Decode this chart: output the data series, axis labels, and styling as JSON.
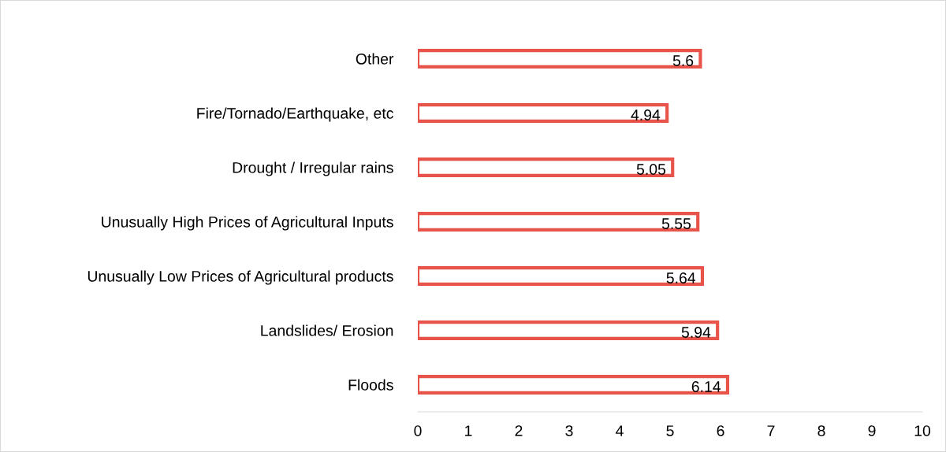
{
  "chart_data": {
    "type": "bar",
    "orientation": "horizontal",
    "categories": [
      "Other",
      "Fire/Tornado/Earthquake, etc",
      "Drought / Irregular rains",
      "Unusually High Prices of Agricultural Inputs",
      "Unusually Low Prices of Agricultural products",
      "Landslides/ Erosion",
      "Floods"
    ],
    "values": [
      5.6,
      4.94,
      5.05,
      5.55,
      5.64,
      5.94,
      6.14
    ],
    "color": "#e8534a",
    "xlim": [
      0,
      10
    ],
    "xticks": [
      0,
      1,
      2,
      3,
      4,
      5,
      6,
      7,
      8,
      9,
      10
    ],
    "data_labels": true,
    "grid": false,
    "legend": false
  }
}
